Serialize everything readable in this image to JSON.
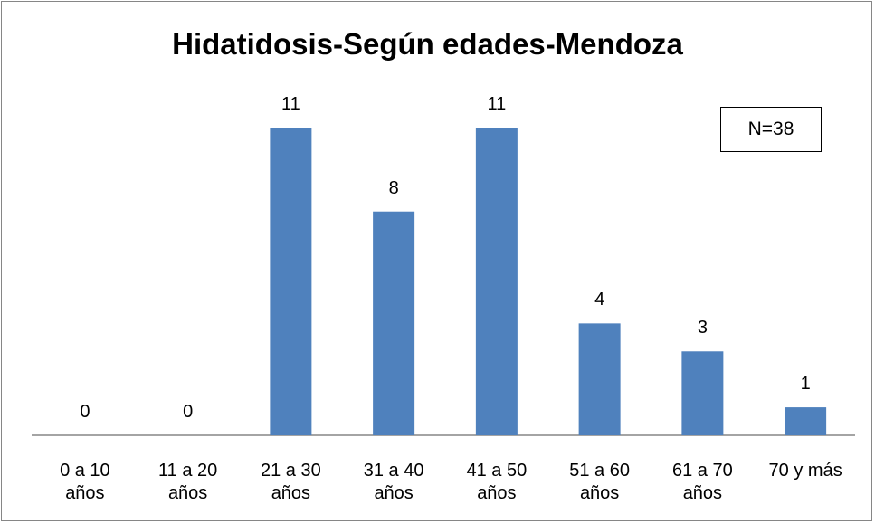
{
  "chart_data": {
    "type": "bar",
    "title": "Hidatidosis-Según edades-Mendoza",
    "annotation": "N=38",
    "categories": [
      "0 a 10 años",
      "11 a 20 años",
      "21 a 30 años",
      "31 a 40 años",
      "41 a 50 años",
      "51 a 60 años",
      "61 a 70 años",
      "70 y más"
    ],
    "values": [
      0,
      0,
      11,
      8,
      11,
      4,
      3,
      1
    ],
    "color": "#4f81bd"
  }
}
